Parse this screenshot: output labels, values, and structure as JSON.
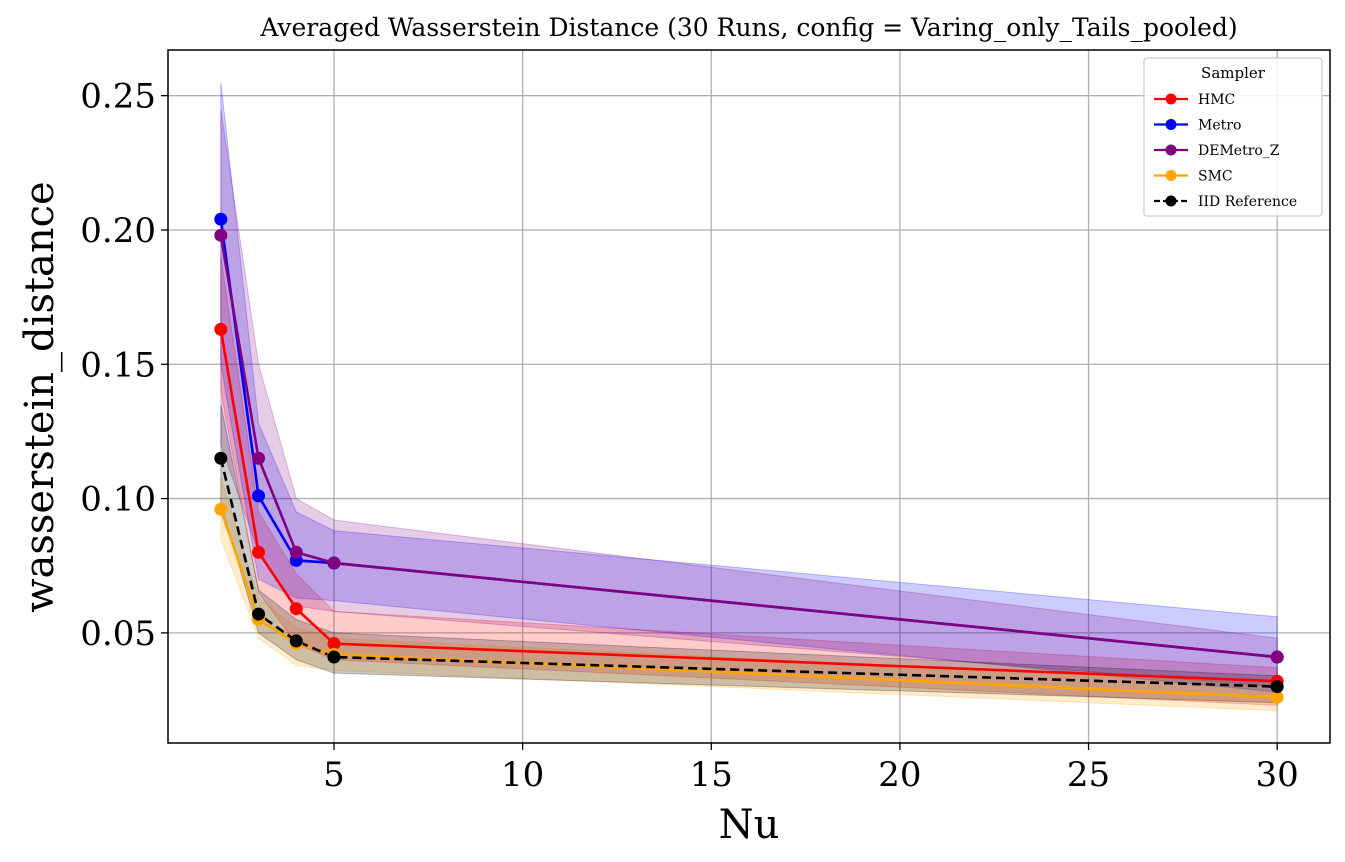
{
  "chart_data": {
    "type": "line",
    "title": "Averaged Wasserstein Distance (30 Runs, config = Varing_only_Tails_pooled)",
    "xlabel": "Nu",
    "ylabel": "wasserstein_distance",
    "xlim": [
      0.6,
      31.4
    ],
    "ylim": [
      0.009,
      0.267
    ],
    "xticks": [
      5,
      10,
      15,
      20,
      25,
      30
    ],
    "yticks": [
      0.05,
      0.1,
      0.15,
      0.2,
      0.25
    ],
    "xtick_labels": [
      "5",
      "10",
      "15",
      "20",
      "25",
      "30"
    ],
    "ytick_labels": [
      "0.05",
      "0.10",
      "0.15",
      "0.20",
      "0.25"
    ],
    "grid": true,
    "legend": {
      "title": "Sampler",
      "placement": "top-right"
    },
    "x": [
      2,
      3,
      4,
      5,
      30
    ],
    "series": [
      {
        "name": "HMC",
        "color": "#ff0000",
        "dashed": false,
        "values": [
          0.163,
          0.08,
          0.059,
          0.046,
          0.032
        ],
        "band_low": [
          0.14,
          0.065,
          0.046,
          0.04,
          0.023
        ],
        "band_high": [
          0.19,
          0.095,
          0.072,
          0.058,
          0.037
        ]
      },
      {
        "name": "Metro",
        "color": "#0000ff",
        "dashed": false,
        "values": [
          0.204,
          0.101,
          0.077,
          0.076,
          0.041
        ],
        "band_low": [
          0.15,
          0.07,
          0.063,
          0.062,
          0.028
        ],
        "band_high": [
          0.255,
          0.128,
          0.095,
          0.088,
          0.056
        ]
      },
      {
        "name": "DEMetro_Z",
        "color": "#800080",
        "dashed": false,
        "values": [
          0.198,
          0.115,
          0.08,
          0.076,
          0.041
        ],
        "band_low": [
          0.12,
          0.08,
          0.06,
          0.058,
          0.03
        ],
        "band_high": [
          0.245,
          0.15,
          0.1,
          0.092,
          0.048
        ]
      },
      {
        "name": "SMC",
        "color": "#ffa500",
        "dashed": false,
        "values": [
          0.096,
          0.055,
          0.046,
          0.042,
          0.026
        ],
        "band_low": [
          0.085,
          0.048,
          0.038,
          0.036,
          0.021
        ],
        "band_high": [
          0.108,
          0.063,
          0.052,
          0.048,
          0.031
        ]
      },
      {
        "name": "IID Reference",
        "color": "#000000",
        "dashed": true,
        "values": [
          0.115,
          0.057,
          0.047,
          0.041,
          0.03
        ],
        "band_low": [
          0.098,
          0.05,
          0.04,
          0.035,
          0.024
        ],
        "band_high": [
          0.135,
          0.066,
          0.055,
          0.05,
          0.034
        ]
      }
    ]
  }
}
